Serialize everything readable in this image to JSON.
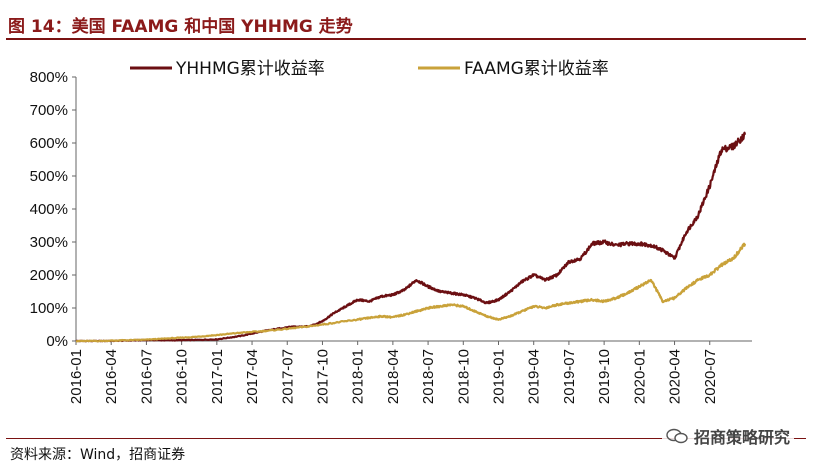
{
  "title": "图 14：美国 FAAMG 和中国 YHHMG 走势",
  "source": "资料来源：Wind，招商证券",
  "watermark": "招商策略研究",
  "chart_data": {
    "type": "line",
    "y_ticks": [
      "0%",
      "100%",
      "200%",
      "300%",
      "400%",
      "500%",
      "600%",
      "700%",
      "800%"
    ],
    "ylim": [
      0,
      800
    ],
    "x_ticks": [
      "2016-01",
      "2016-04",
      "2016-07",
      "2016-10",
      "2017-01",
      "2017-04",
      "2017-07",
      "2017-10",
      "2018-01",
      "2018-04",
      "2018-07",
      "2018-10",
      "2019-01",
      "2019-04",
      "2019-07",
      "2019-10",
      "2020-01",
      "2020-04",
      "2020-07"
    ],
    "grid": false,
    "legend": "top",
    "series": [
      {
        "name": "YHHMG累计收益率",
        "color": "#6b0f12",
        "x": [
          "2016-01",
          "2016-03",
          "2016-05",
          "2016-07",
          "2016-09",
          "2016-11",
          "2017-01",
          "2017-03",
          "2017-05",
          "2017-07",
          "2017-09",
          "2017-10",
          "2017-11",
          "2017-12",
          "2018-01",
          "2018-02",
          "2018-03",
          "2018-04",
          "2018-05",
          "2018-06",
          "2018-07",
          "2018-08",
          "2018-09",
          "2018-10",
          "2018-11",
          "2018-12",
          "2019-01",
          "2019-02",
          "2019-03",
          "2019-04",
          "2019-05",
          "2019-06",
          "2019-07",
          "2019-08",
          "2019-09",
          "2019-10",
          "2019-11",
          "2019-12",
          "2020-01",
          "2020-02",
          "2020-03",
          "2020-04",
          "2020-05",
          "2020-06",
          "2020-07",
          "2020-08",
          "2020-09",
          "2020-10"
        ],
        "values": [
          0,
          0,
          1,
          3,
          2,
          3,
          5,
          15,
          30,
          42,
          45,
          60,
          85,
          105,
          125,
          120,
          135,
          140,
          155,
          185,
          165,
          150,
          145,
          140,
          130,
          115,
          125,
          150,
          180,
          200,
          185,
          200,
          240,
          250,
          295,
          300,
          290,
          295,
          295,
          290,
          275,
          250,
          330,
          380,
          470,
          580,
          590,
          625
        ]
      },
      {
        "name": "FAAMG累计收益率",
        "color": "#c9a23a",
        "x": [
          "2016-01",
          "2016-03",
          "2016-05",
          "2016-07",
          "2016-09",
          "2016-11",
          "2017-01",
          "2017-03",
          "2017-05",
          "2017-07",
          "2017-09",
          "2017-11",
          "2018-01",
          "2018-02",
          "2018-03",
          "2018-04",
          "2018-05",
          "2018-06",
          "2018-07",
          "2018-08",
          "2018-09",
          "2018-10",
          "2018-11",
          "2018-12",
          "2019-01",
          "2019-02",
          "2019-03",
          "2019-04",
          "2019-05",
          "2019-06",
          "2019-07",
          "2019-08",
          "2019-09",
          "2019-10",
          "2019-11",
          "2019-12",
          "2020-01",
          "2020-02",
          "2020-03",
          "2020-04",
          "2020-05",
          "2020-06",
          "2020-07",
          "2020-08",
          "2020-09",
          "2020-10"
        ],
        "values": [
          0,
          0,
          2,
          4,
          8,
          12,
          18,
          25,
          30,
          37,
          45,
          55,
          65,
          70,
          75,
          72,
          80,
          90,
          100,
          105,
          110,
          105,
          90,
          75,
          65,
          75,
          90,
          105,
          100,
          110,
          115,
          120,
          125,
          120,
          130,
          145,
          165,
          185,
          120,
          130,
          160,
          185,
          200,
          230,
          250,
          295
        ]
      }
    ]
  }
}
